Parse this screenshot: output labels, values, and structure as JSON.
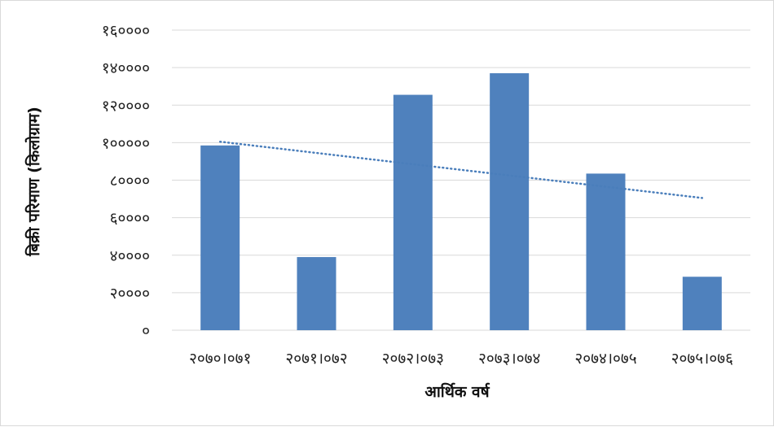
{
  "chart_data": {
    "type": "bar",
    "title": "",
    "xlabel": "आर्थिक वर्ष",
    "ylabel": "बिक्री परिमाण (किलोग्राम)",
    "categories": [
      "२०७०।०७१",
      "२०७१।०७२",
      "२०७२।०७३",
      "२०७३।०७४",
      "२०७४।०७५",
      "२०७५।०७६"
    ],
    "series": [
      {
        "values": [
          98500,
          39000,
          125500,
          137000,
          83500,
          28500
        ]
      }
    ],
    "ylim": [
      0,
      160000
    ],
    "yticks": [
      0,
      20000,
      40000,
      60000,
      80000,
      100000,
      120000,
      140000,
      160000
    ],
    "ytick_labels": [
      "०",
      "२००००",
      "४००००",
      "६००००",
      "८००००",
      "१०००००",
      "१२००००",
      "१४००००",
      "१६००००"
    ],
    "trendline": {
      "type": "linear",
      "style": "dotted",
      "start": 100500,
      "end": 70500
    },
    "grid": true,
    "legend": "none",
    "colors": {
      "bar": "#4f81bd",
      "trend": "#4a7ebb",
      "grid": "#d9d9d9"
    }
  }
}
